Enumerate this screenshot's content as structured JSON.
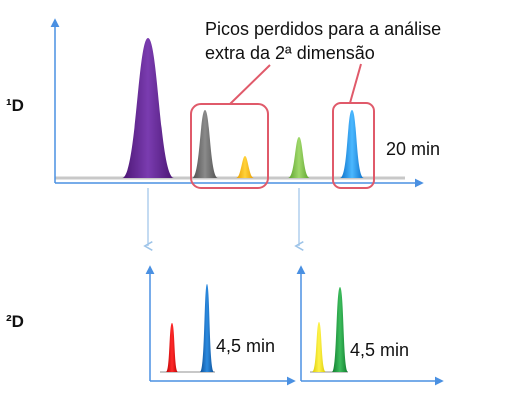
{
  "labels": {
    "dim1": "¹D",
    "dim2": "²D",
    "callout_line1": "Picos perdidos para a análise",
    "callout_line2": "extra da 2ª dimensão",
    "time_1d": "20 min",
    "time_2d_left": "4,5 min",
    "time_2d_right": "4,5 min"
  },
  "colors": {
    "axis": "#4a90e2",
    "baseline": "#c8c8c8",
    "highlight_box": "#e05a6a",
    "connector": "#9cc3e8",
    "peak_purple": "#6a2a9c",
    "peak_gray": "#6e6e6e",
    "peak_orange": "#f5b800",
    "peak_green": "#7cc043",
    "peak_blue": "#1f8fe0",
    "peak_red": "#e00000",
    "peak_blue_2d": "#1a6fc0",
    "peak_yellow": "#f2e600",
    "peak_green_2d": "#1f9a3e"
  }
}
